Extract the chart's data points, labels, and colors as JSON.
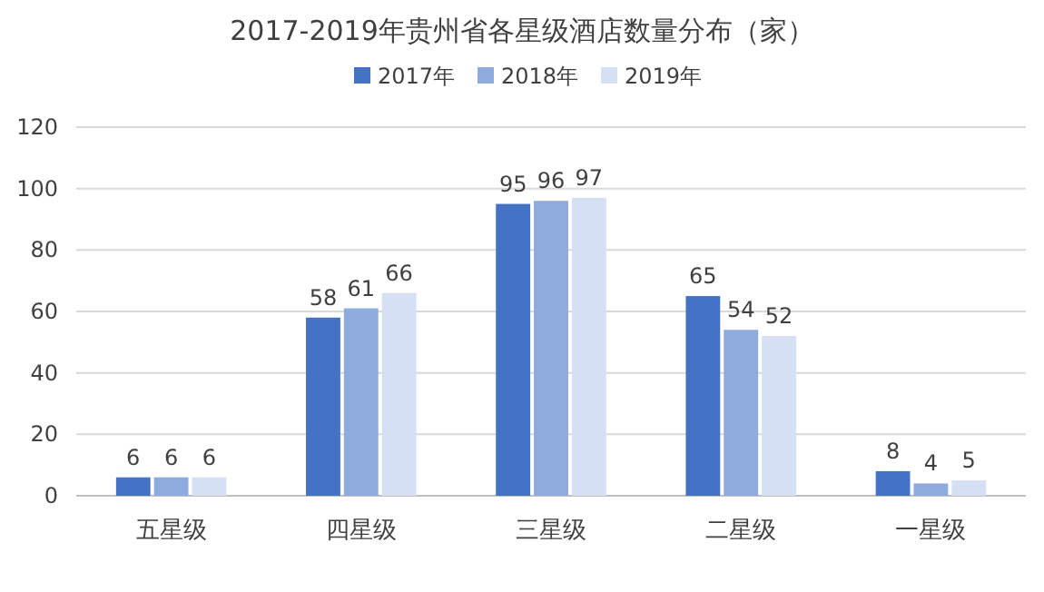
{
  "chart_data": {
    "type": "bar",
    "title": "2017-2019年贵州省各星级酒店数量分布（家）",
    "categories": [
      "五星级",
      "四星级",
      "三星级",
      "二星级",
      "一星级"
    ],
    "series": [
      {
        "name": "2017年",
        "color": "#4472c4",
        "values": [
          6,
          58,
          95,
          65,
          8
        ]
      },
      {
        "name": "2018年",
        "color": "#8faadc",
        "values": [
          6,
          61,
          96,
          54,
          4
        ]
      },
      {
        "name": "2019年",
        "color": "#d6e0f4",
        "values": [
          6,
          66,
          97,
          52,
          5
        ]
      }
    ],
    "ylim": [
      0,
      120
    ],
    "yticks": [
      0,
      20,
      40,
      60,
      80,
      100,
      120
    ],
    "grid": "y",
    "legend": "top",
    "data_labels": true
  }
}
